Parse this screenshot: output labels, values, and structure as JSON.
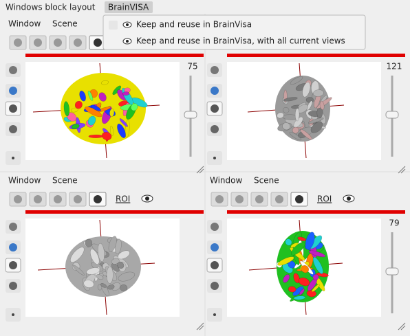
{
  "menu_bar": {
    "items": [
      "Windows block layout",
      "BrainVISA"
    ]
  },
  "dropdown": {
    "items": [
      "Keep and reuse in BrainVisa",
      "Keep and reuse in BrainVisa, with all current views"
    ]
  },
  "panels": [
    {
      "menu": [
        "Window",
        "Scene"
      ],
      "slider_value": 75
    },
    {
      "slider_value": 121
    },
    {
      "menu": [
        "Window",
        "Scene"
      ],
      "toolbar_label": "ROI"
    },
    {
      "menu": [
        "Window",
        "Scene"
      ],
      "toolbar_label": "ROI",
      "slider_value": 79
    }
  ]
}
